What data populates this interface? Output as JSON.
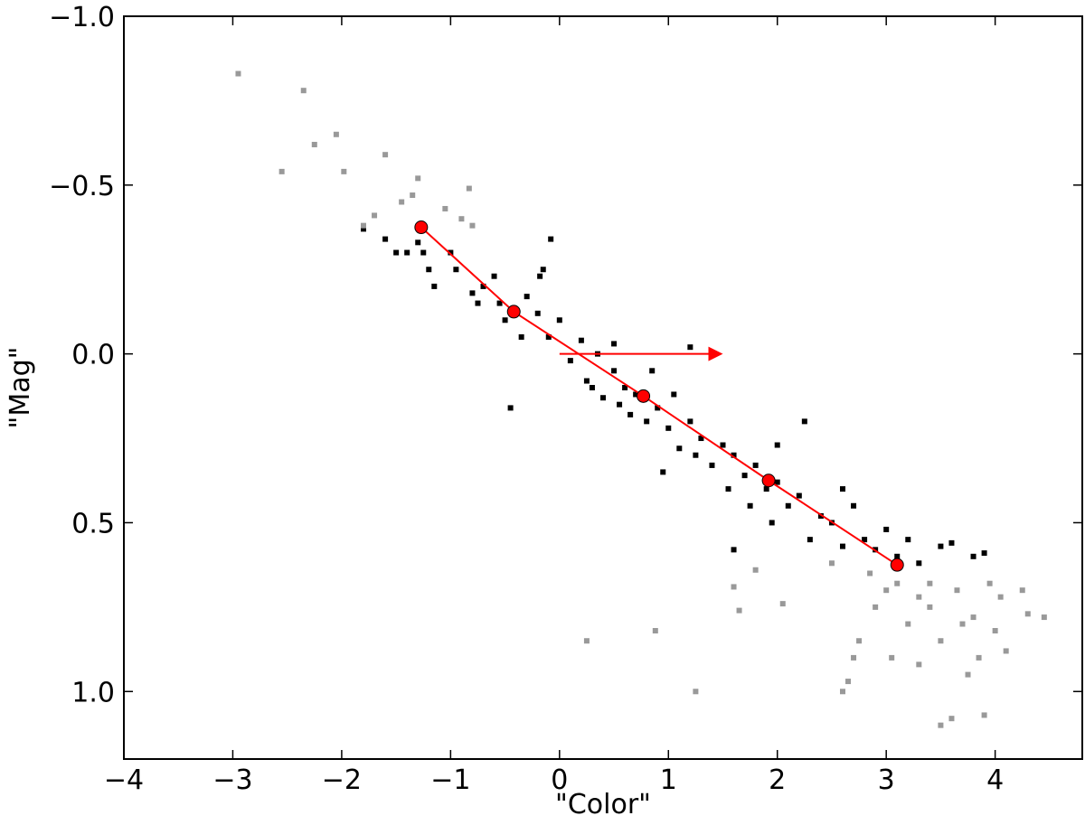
{
  "chart_data": {
    "type": "scatter",
    "xlabel": "\"Color\"",
    "ylabel": "\"Mag\"",
    "xlim": [
      -4,
      4.8
    ],
    "ylim": [
      -1.0,
      1.2
    ],
    "invert_y": true,
    "xticks": [
      {
        "value": -4,
        "label": "−4"
      },
      {
        "value": -3,
        "label": "−3"
      },
      {
        "value": -2,
        "label": "−2"
      },
      {
        "value": -1,
        "label": "−1"
      },
      0,
      1,
      2,
      3,
      4
    ],
    "yticks": [
      {
        "value": -1.0,
        "label": "−1.0"
      },
      {
        "value": -0.5,
        "label": "−0.5"
      },
      {
        "value": 0.0,
        "label": "0.0"
      },
      {
        "value": 0.5,
        "label": "0.5"
      },
      {
        "value": 1.0,
        "label": "1.0"
      }
    ],
    "series": [
      {
        "color": "#000000",
        "marker": "square",
        "x": [
          -1.8,
          -1.6,
          -1.5,
          -1.4,
          -1.3,
          -1.25,
          -1.2,
          -1.15,
          -1.0,
          -0.95,
          -0.8,
          -0.7,
          -0.75,
          -0.6,
          -0.55,
          -0.5,
          -0.4,
          -0.35,
          -0.3,
          -0.2,
          -0.1,
          0.0,
          -0.15,
          0.1,
          0.2,
          0.25,
          0.3,
          0.35,
          0.4,
          0.5,
          0.55,
          0.6,
          0.65,
          0.7,
          0.8,
          0.85,
          0.9,
          1.0,
          1.05,
          1.1,
          1.2,
          1.25,
          1.3,
          1.4,
          1.5,
          1.55,
          1.6,
          1.7,
          1.75,
          1.8,
          1.9,
          1.95,
          2.0,
          2.1,
          2.2,
          2.3,
          2.4,
          2.5,
          2.6,
          2.7,
          2.8,
          2.9,
          3.0,
          3.1,
          3.2,
          3.3,
          3.5,
          3.6,
          3.8,
          3.9,
          -0.45,
          1.2,
          0.5,
          -0.08,
          -0.18,
          2.25,
          1.6,
          2.0,
          2.6,
          0.95
        ],
        "values": [
          -0.37,
          -0.34,
          -0.3,
          -0.3,
          -0.33,
          -0.3,
          -0.25,
          -0.2,
          -0.3,
          -0.25,
          -0.18,
          -0.2,
          -0.15,
          -0.23,
          -0.15,
          -0.1,
          -0.12,
          -0.05,
          -0.17,
          -0.12,
          -0.05,
          -0.1,
          -0.25,
          0.02,
          -0.04,
          0.08,
          0.1,
          0.0,
          0.13,
          0.05,
          0.15,
          0.1,
          0.18,
          0.12,
          0.2,
          0.05,
          0.16,
          0.22,
          0.12,
          0.28,
          0.2,
          0.3,
          0.25,
          0.33,
          0.27,
          0.4,
          0.3,
          0.36,
          0.45,
          0.33,
          0.4,
          0.5,
          0.38,
          0.45,
          0.42,
          0.55,
          0.48,
          0.5,
          0.57,
          0.45,
          0.55,
          0.58,
          0.52,
          0.6,
          0.55,
          0.62,
          0.57,
          0.56,
          0.6,
          0.59,
          0.16,
          -0.02,
          -0.03,
          -0.34,
          -0.23,
          0.2,
          0.58,
          0.27,
          0.4,
          0.35
        ]
      },
      {
        "color": "#999999",
        "marker": "square",
        "x": [
          -2.95,
          -2.35,
          -2.25,
          -2.05,
          -2.55,
          -1.98,
          -1.6,
          -1.45,
          -1.35,
          -1.3,
          -1.05,
          -0.83,
          -1.8,
          -1.7,
          -0.9,
          -0.8,
          0.25,
          0.88,
          1.25,
          1.6,
          1.65,
          1.8,
          2.05,
          2.5,
          2.6,
          2.65,
          2.7,
          2.75,
          2.9,
          3.0,
          3.1,
          3.2,
          3.3,
          3.4,
          3.5,
          3.5,
          3.6,
          3.65,
          3.7,
          3.75,
          3.8,
          3.85,
          3.9,
          3.95,
          4.0,
          4.05,
          4.1,
          4.25,
          4.3,
          4.45,
          2.85,
          3.4,
          3.05,
          3.3
        ],
        "values": [
          -0.83,
          -0.78,
          -0.62,
          -0.65,
          -0.54,
          -0.54,
          -0.59,
          -0.45,
          -0.47,
          -0.52,
          -0.43,
          -0.49,
          -0.38,
          -0.41,
          -0.4,
          -0.38,
          0.85,
          0.82,
          1.0,
          0.69,
          0.76,
          0.64,
          0.74,
          0.62,
          1.0,
          0.97,
          0.9,
          0.85,
          0.75,
          0.7,
          0.68,
          0.8,
          0.72,
          0.75,
          0.85,
          1.1,
          1.08,
          0.7,
          0.8,
          0.95,
          0.78,
          0.9,
          1.07,
          0.68,
          0.82,
          0.72,
          0.88,
          0.7,
          0.77,
          0.78,
          0.65,
          0.68,
          0.9,
          0.92
        ]
      },
      {
        "color": "#ff0000",
        "marker": "circle",
        "line": true,
        "x": [
          -1.27,
          -0.42,
          0.77,
          1.92,
          3.1
        ],
        "values": [
          -0.375,
          -0.125,
          0.125,
          0.375,
          0.625
        ]
      }
    ],
    "arrow": {
      "color": "#ff0000",
      "x": [
        0,
        1.5
      ],
      "y": [
        0,
        0
      ]
    }
  }
}
